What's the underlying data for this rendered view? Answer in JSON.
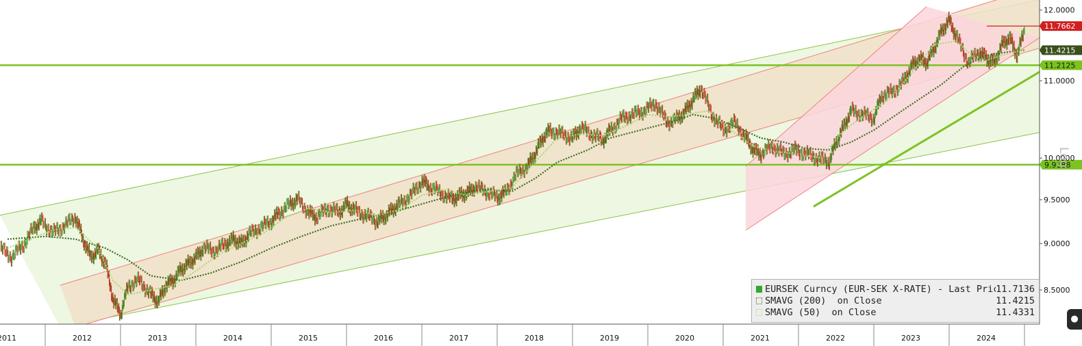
{
  "chart_data": {
    "type": "line",
    "title": "",
    "xlabel": "",
    "ylabel": "",
    "scale_label": "Log",
    "y_scale": "log",
    "ylim": [
      8.15,
      12.15
    ],
    "xlim": [
      2010.9,
      2024.7
    ],
    "y_ticks": [
      "8.5000",
      "9.0000",
      "9.5000",
      "10.0000",
      "11.0000",
      "12.0000"
    ],
    "y_tick_values": [
      8.5,
      9.0,
      9.5,
      10.0,
      11.0,
      12.0
    ],
    "x_tick_labels": [
      "2011",
      "2012",
      "2013",
      "2014",
      "2015",
      "2016",
      "2017",
      "2018",
      "2019",
      "2020",
      "2021",
      "2022",
      "2023",
      "2024"
    ],
    "x_tick_values": [
      2011,
      2012,
      2013,
      2014,
      2015,
      2016,
      2017,
      2018,
      2019,
      2020,
      2021,
      2022,
      2023,
      2024
    ],
    "series": [
      {
        "name": "EURSEK Curncy (EUR-SEK X-RATE) - Last Price",
        "last": "11.7136",
        "color": "#2fa82f",
        "style": "candles",
        "x": [
          2010.9,
          2011.05,
          2011.2,
          2011.35,
          2011.45,
          2011.6,
          2011.75,
          2011.9,
          2012.0,
          2012.1,
          2012.2,
          2012.3,
          2012.4,
          2012.5,
          2012.6,
          2012.75,
          2012.9,
          2013.0,
          2013.1,
          2013.2,
          2013.3,
          2013.4,
          2013.5,
          2013.6,
          2013.75,
          2013.9,
          2014.0,
          2014.1,
          2014.2,
          2014.35,
          2014.5,
          2014.6,
          2014.75,
          2014.85,
          2015.0,
          2015.1,
          2015.25,
          2015.4,
          2015.5,
          2015.6,
          2015.75,
          2015.9,
          2016.0,
          2016.1,
          2016.2,
          2016.35,
          2016.5,
          2016.6,
          2016.75,
          2016.9,
          2017.0,
          2017.1,
          2017.2,
          2017.35,
          2017.5,
          2017.6,
          2017.75,
          2017.9,
          2018.0,
          2018.1,
          2018.2,
          2018.35,
          2018.5,
          2018.6,
          2018.75,
          2018.9,
          2019.0,
          2019.15,
          2019.3,
          2019.45,
          2019.6,
          2019.75,
          2019.9,
          2020.0,
          2020.1,
          2020.2,
          2020.35,
          2020.5,
          2020.65,
          2020.8,
          2020.9,
          2021.0,
          2021.15,
          2021.3,
          2021.45,
          2021.6,
          2021.75,
          2021.9,
          2022.0,
          2022.1,
          2022.2,
          2022.35,
          2022.5,
          2022.6,
          2022.75,
          2022.9,
          2023.0,
          2023.1,
          2023.2,
          2023.3,
          2023.4,
          2023.5,
          2023.6,
          2023.75,
          2023.9,
          2024.0,
          2024.1,
          2024.2,
          2024.3,
          2024.4,
          2024.5
        ],
        "values": [
          8.95,
          8.85,
          8.98,
          9.18,
          9.25,
          9.12,
          9.2,
          9.3,
          9.05,
          8.85,
          8.92,
          8.78,
          8.4,
          8.25,
          8.55,
          8.6,
          8.45,
          8.38,
          8.55,
          8.6,
          8.72,
          8.78,
          8.85,
          8.95,
          8.92,
          9.0,
          9.05,
          9.0,
          9.1,
          9.18,
          9.25,
          9.35,
          9.45,
          9.5,
          9.35,
          9.3,
          9.4,
          9.35,
          9.45,
          9.38,
          9.32,
          9.25,
          9.3,
          9.38,
          9.45,
          9.55,
          9.72,
          9.65,
          9.58,
          9.5,
          9.55,
          9.58,
          9.65,
          9.6,
          9.52,
          9.58,
          9.8,
          9.9,
          10.05,
          10.25,
          10.35,
          10.3,
          10.25,
          10.38,
          10.3,
          10.22,
          10.35,
          10.5,
          10.55,
          10.6,
          10.7,
          10.45,
          10.5,
          10.6,
          10.75,
          10.9,
          10.55,
          10.35,
          10.45,
          10.25,
          10.1,
          10.05,
          10.15,
          10.05,
          10.1,
          10.05,
          10.0,
          9.95,
          10.2,
          10.4,
          10.6,
          10.55,
          10.5,
          10.8,
          10.85,
          11.0,
          11.2,
          11.3,
          11.25,
          11.45,
          11.7,
          11.85,
          11.6,
          11.25,
          11.4,
          11.3,
          11.25,
          11.5,
          11.6,
          11.35,
          11.7136
        ]
      },
      {
        "name": "SMAVG (200)  on Close",
        "last": "11.4215",
        "color": "#3a6b1f",
        "style": "dotted",
        "x": [
          2011.0,
          2011.5,
          2011.9,
          2012.3,
          2012.6,
          2012.9,
          2013.3,
          2013.7,
          2014.1,
          2014.5,
          2014.9,
          2015.3,
          2015.7,
          2016.1,
          2016.5,
          2016.9,
          2017.3,
          2017.7,
          2018.0,
          2018.3,
          2018.7,
          2019.0,
          2019.4,
          2019.8,
          2020.1,
          2020.4,
          2020.7,
          2021.0,
          2021.3,
          2021.6,
          2021.9,
          2022.2,
          2022.5,
          2022.8,
          2023.1,
          2023.4,
          2023.7,
          2024.0,
          2024.3,
          2024.5
        ],
        "values": [
          9.05,
          9.08,
          9.05,
          8.95,
          8.82,
          8.65,
          8.6,
          8.68,
          8.8,
          8.95,
          9.08,
          9.2,
          9.28,
          9.35,
          9.45,
          9.55,
          9.62,
          9.6,
          9.75,
          9.95,
          10.1,
          10.25,
          10.35,
          10.45,
          10.55,
          10.5,
          10.38,
          10.25,
          10.2,
          10.12,
          10.1,
          10.2,
          10.35,
          10.55,
          10.75,
          10.95,
          11.2,
          11.35,
          11.4,
          11.4215
        ]
      },
      {
        "name": "SMAVG (50)  on Close",
        "last": "11.4331",
        "color": "#a9d878",
        "style": "dotted",
        "x": [
          2011.0,
          2011.3,
          2011.6,
          2011.9,
          2012.2,
          2012.4,
          2012.6,
          2012.9,
          2013.2,
          2013.5,
          2013.8,
          2014.1,
          2014.4,
          2014.7,
          2015.0,
          2015.3,
          2015.6,
          2015.9,
          2016.2,
          2016.5,
          2016.8,
          2017.1,
          2017.4,
          2017.7,
          2018.0,
          2018.3,
          2018.6,
          2018.9,
          2019.2,
          2019.5,
          2019.8,
          2020.0,
          2020.3,
          2020.6,
          2020.9,
          2021.2,
          2021.5,
          2021.8,
          2022.1,
          2022.4,
          2022.7,
          2023.0,
          2023.3,
          2023.6,
          2023.9,
          2024.2,
          2024.5
        ],
        "values": [
          8.95,
          9.05,
          9.15,
          9.18,
          8.95,
          8.6,
          8.45,
          8.5,
          8.55,
          8.7,
          8.88,
          9.0,
          9.12,
          9.3,
          9.4,
          9.35,
          9.38,
          9.32,
          9.38,
          9.55,
          9.62,
          9.55,
          9.6,
          9.65,
          9.95,
          10.25,
          10.3,
          10.28,
          10.4,
          10.55,
          10.52,
          10.55,
          10.6,
          10.35,
          10.15,
          10.08,
          10.05,
          10.0,
          10.35,
          10.55,
          10.75,
          11.1,
          11.5,
          11.55,
          11.25,
          11.35,
          11.4331
        ]
      }
    ],
    "horizontal_levels": [
      {
        "value": 11.7662,
        "label": "11.7662",
        "color": "#d11f1f",
        "x_from": 2024.0
      },
      {
        "value": 11.4215,
        "label": "11.4215",
        "color": "#3a4f1c"
      },
      {
        "value": 11.2125,
        "label": "11.2125",
        "color": "#7cc222",
        "full_line": true
      },
      {
        "value": 9.9188,
        "label": "9.9188",
        "color": "#7cc222",
        "full_line": true
      }
    ],
    "channels": [
      {
        "name": "green-channel",
        "fill": "#eaf6dc",
        "stroke": "#8bc34a",
        "upper": {
          "x0": 2010.9,
          "y0": 9.32,
          "x1": 2024.7,
          "y1": 12.15
        },
        "lower": {
          "x0": 2011.7,
          "y0": 8.12,
          "x1": 2024.7,
          "y1": 10.32
        }
      },
      {
        "name": "tan-channel",
        "fill": "#f1e1c8",
        "stroke": "#f08080",
        "upper": {
          "x0": 2011.7,
          "y0": 8.55,
          "x1": 2024.7,
          "y1": 12.35
        },
        "lower": {
          "x0": 2011.9,
          "y0": 8.12,
          "x1": 2024.7,
          "y1": 11.45
        }
      },
      {
        "name": "pink-channel",
        "fill": "#fbd6dc",
        "stroke": "#f08080",
        "upper": {
          "x0": 2020.8,
          "y0": 9.9,
          "x1": 2023.2,
          "y1": 12.05
        },
        "lower": {
          "x0": 2020.8,
          "y0": 9.15,
          "x1": 2024.7,
          "y1": 11.6
        }
      }
    ],
    "support_line": {
      "x0": 2021.7,
      "y0": 9.42,
      "x1": 2024.7,
      "y1": 11.12,
      "color": "#7cc222"
    }
  },
  "corner_icon": "pin-icon"
}
